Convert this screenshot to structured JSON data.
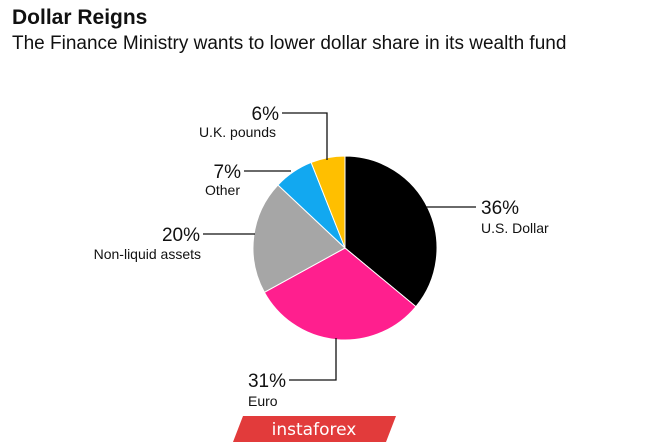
{
  "chart_data": {
    "type": "pie",
    "title": "Dollar Reigns",
    "subtitle": "The Finance Ministry wants to lower dollar share in its wealth fund",
    "slices": [
      {
        "key": "usd",
        "label": "U.S. Dollar",
        "pct_label": "36%",
        "value": 36,
        "color": "#000000"
      },
      {
        "key": "eur",
        "label": "Euro",
        "pct_label": "31%",
        "value": 31,
        "color": "#ff1f8e"
      },
      {
        "key": "nonliquid",
        "label": "Non-liquid assets",
        "pct_label": "20%",
        "value": 20,
        "color": "#a6a6a6"
      },
      {
        "key": "other",
        "label": "Other",
        "pct_label": "7%",
        "value": 7,
        "color": "#12a8f0"
      },
      {
        "key": "gbp",
        "label": "U.K. pounds",
        "pct_label": "6%",
        "value": 6,
        "color": "#ffbf00"
      }
    ],
    "start": "12 o'clock",
    "direction": "clockwise"
  },
  "watermark": {
    "text": "instaforex",
    "color": "#e23b3b"
  }
}
